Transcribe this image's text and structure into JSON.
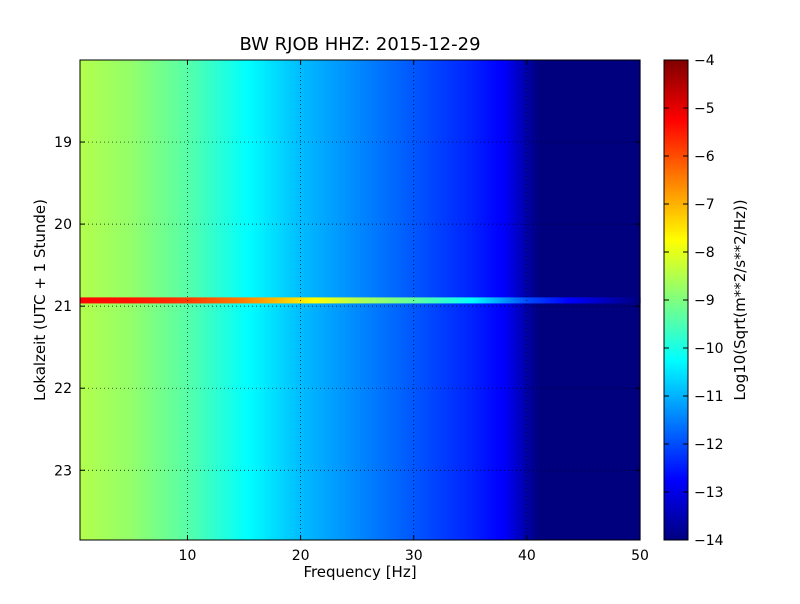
{
  "chart_data": {
    "type": "heatmap",
    "title": "BW RJOB HHZ: 2015-12-29",
    "xlabel": "Frequency [Hz]",
    "ylabel": "Lokalzeit (UTC + 1 Stunde)",
    "xlim": [
      0.5,
      50
    ],
    "ylim": [
      23.85,
      18.0
    ],
    "xticks": [
      10,
      20,
      30,
      40,
      50
    ],
    "yticks": [
      19,
      20,
      21,
      22,
      23
    ],
    "grid": true,
    "colorbar": {
      "label": "Log10(Sqrt(m**2/s**2/Hz))",
      "range": [
        -14,
        -4
      ],
      "ticks": [
        -4,
        -5,
        -6,
        -7,
        -8,
        -9,
        -10,
        -11,
        -12,
        -13,
        -14
      ],
      "tick_labels": [
        "−4",
        "−5",
        "−6",
        "−7",
        "−8",
        "−9",
        "−10",
        "−11",
        "−12",
        "−13",
        "−14"
      ]
    },
    "colormap": [
      "#00007f",
      "#0000ff",
      "#007fff",
      "#00ffff",
      "#7fff7f",
      "#ffff00",
      "#ff7f00",
      "#ff0000",
      "#7f0000"
    ],
    "baseline_profile": {
      "frequency_hz": [
        0.5,
        5,
        10,
        15,
        20,
        25,
        30,
        35,
        38,
        40,
        41,
        50
      ],
      "value": [
        -8.5,
        -8.8,
        -9.4,
        -10.2,
        -10.9,
        -11.4,
        -11.9,
        -12.4,
        -12.8,
        -13.6,
        -14,
        -14
      ]
    },
    "events": [
      {
        "time": 20.93,
        "value_profile": {
          "frequency_hz": [
            0.5,
            5,
            10,
            15,
            20,
            25,
            30,
            35,
            40,
            50
          ],
          "value": [
            -5.3,
            -5.4,
            -5.8,
            -6.5,
            -7.5,
            -8.5,
            -9.3,
            -10.2,
            -12.0,
            -14
          ]
        }
      }
    ]
  }
}
